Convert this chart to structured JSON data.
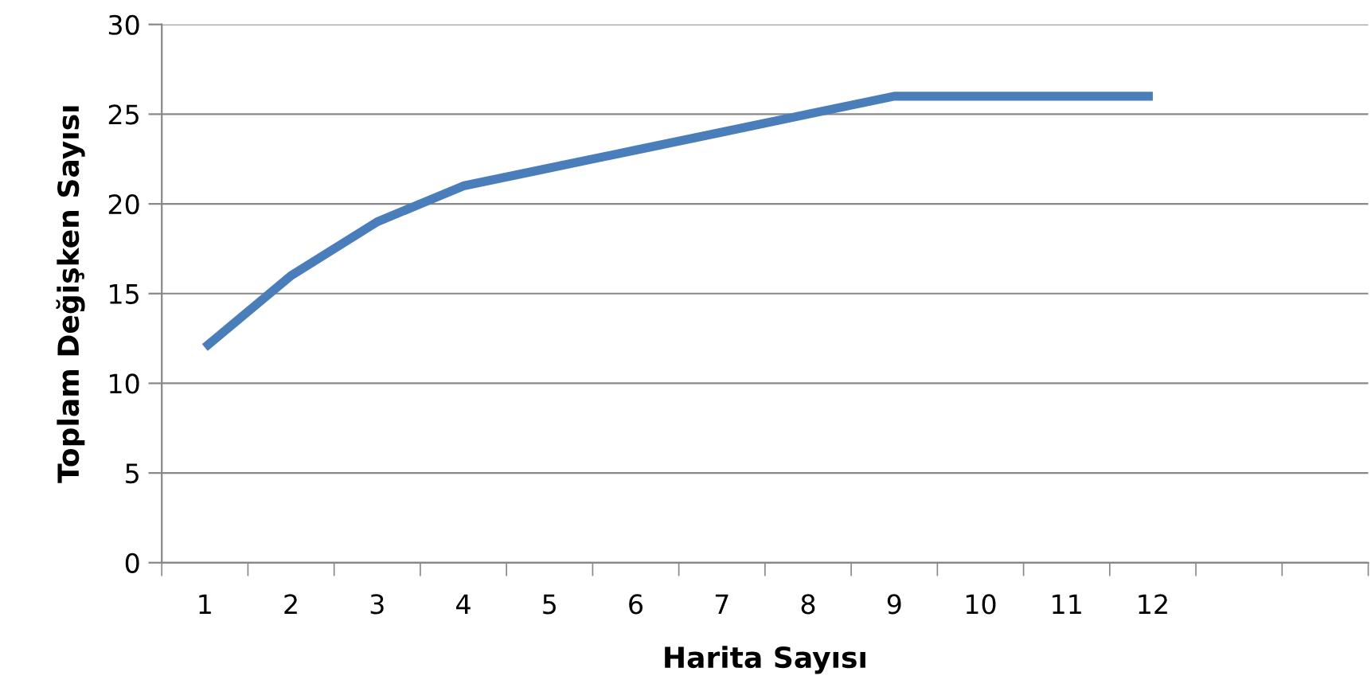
{
  "chart_data": {
    "type": "line",
    "xlabel": "Harita Sayısı",
    "ylabel": "Toplam Değişken Sayısı",
    "categories": [
      "1",
      "2",
      "3",
      "4",
      "5",
      "6",
      "7",
      "8",
      "9",
      "10",
      "11",
      "12",
      null,
      null
    ],
    "series": [
      {
        "color": "#4a7ebb",
        "values": [
          12,
          16,
          19,
          21,
          22,
          23,
          24,
          25,
          26,
          26,
          26,
          26,
          null,
          null
        ]
      }
    ],
    "ylim": [
      0,
      30
    ],
    "yticks": [
      0,
      5,
      10,
      15,
      20,
      25,
      30
    ],
    "grid": "y",
    "marker": "none",
    "line_style": "solid"
  }
}
